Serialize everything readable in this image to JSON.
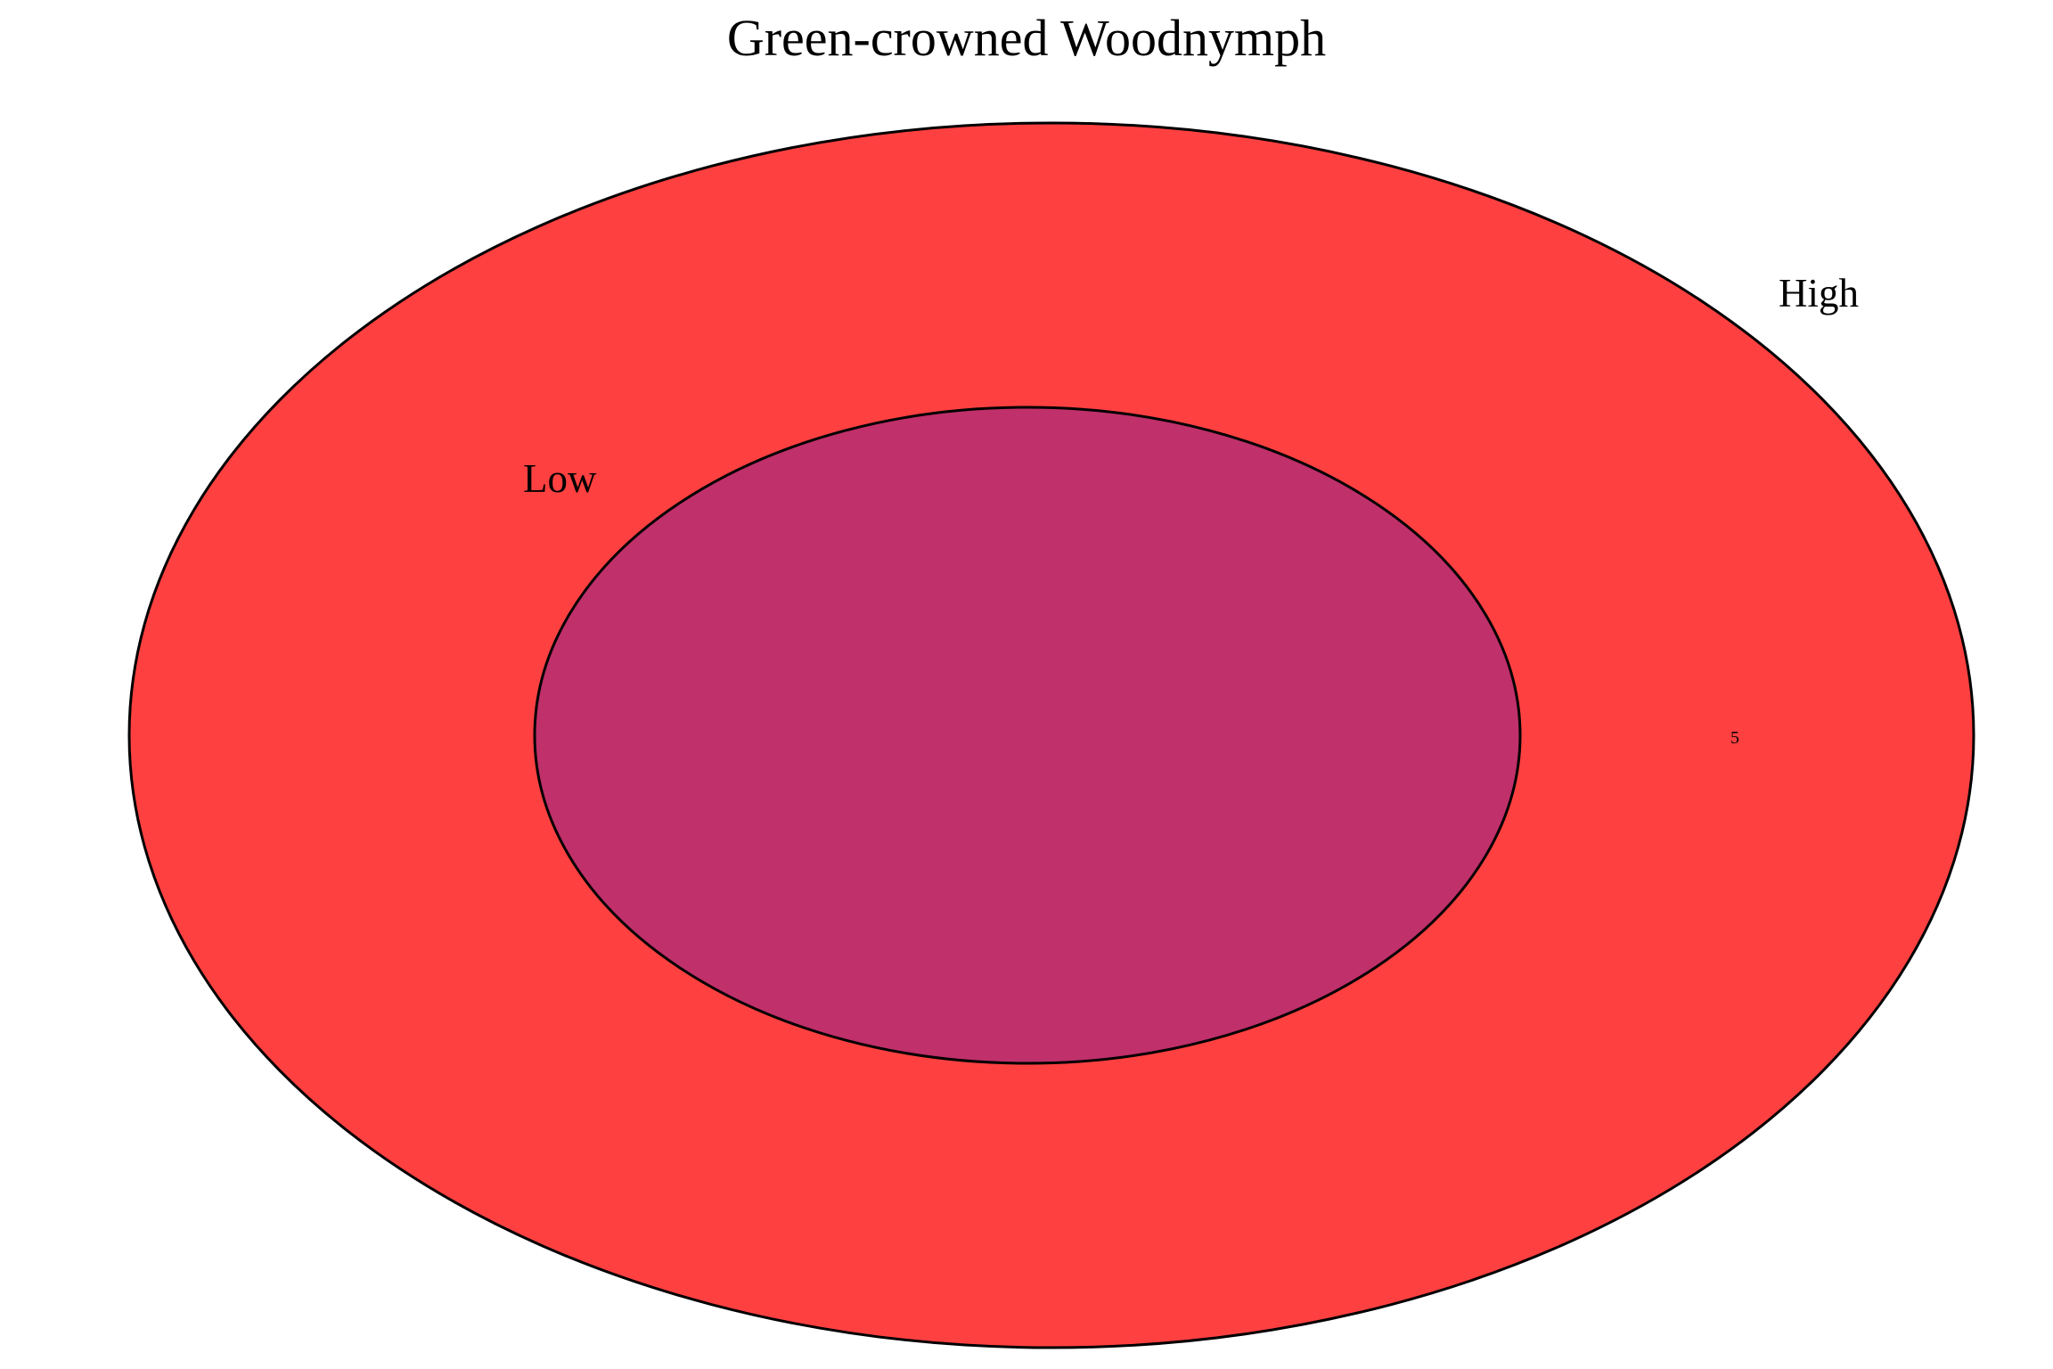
{
  "title": "Green-crowned Woodnymph",
  "sets": [
    {
      "name": "High",
      "color": "#ff4040"
    },
    {
      "name": "Low",
      "color": "#c0306a"
    }
  ],
  "regions": [
    {
      "sets": [
        "High"
      ],
      "count": "5"
    },
    {
      "sets": [
        "High",
        "Low"
      ],
      "count": ""
    }
  ],
  "outline_color": "#000000"
}
